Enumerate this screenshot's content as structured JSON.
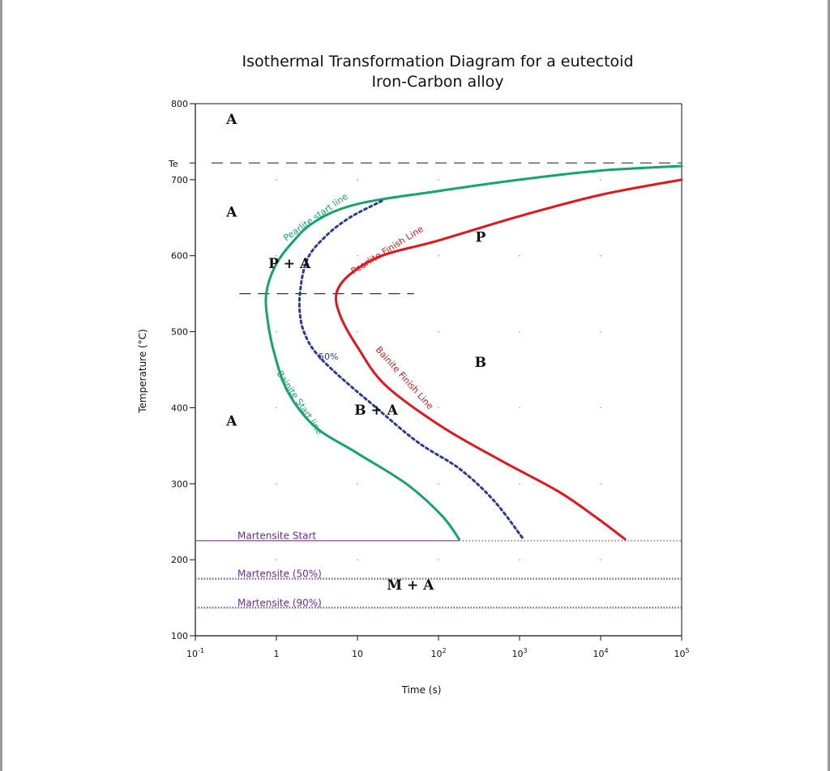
{
  "chart_data": {
    "type": "line",
    "title_line1": "Isothermal Transformation Diagram for a eutectoid",
    "title_line2": "Iron-Carbon alloy",
    "xlabel": "Time (s)",
    "ylabel": "Temperature (°C)",
    "x_scale": "log",
    "xlim": [
      0.1,
      100000
    ],
    "ylim": [
      100,
      800
    ],
    "x_ticks": [
      {
        "value": 0.1,
        "base": "10",
        "exp": "-1"
      },
      {
        "value": 1,
        "base": "1",
        "exp": ""
      },
      {
        "value": 10,
        "base": "10",
        "exp": ""
      },
      {
        "value": 100,
        "base": "10",
        "exp": "2"
      },
      {
        "value": 1000,
        "base": "10",
        "exp": "3"
      },
      {
        "value": 10000,
        "base": "10",
        "exp": "4"
      },
      {
        "value": 100000,
        "base": "10",
        "exp": "5"
      }
    ],
    "y_ticks": [
      800,
      700,
      600,
      500,
      400,
      300,
      200,
      100
    ],
    "te_label": "Te",
    "te_value": 722,
    "te_color": "#e8141c",
    "nose_temp": 550,
    "nose_line_end": 50,
    "series": [
      {
        "key": "pearlite_start",
        "color": "#13a56b",
        "dash": false,
        "points": [
          [
            100000,
            718
          ],
          [
            10000,
            712
          ],
          [
            1000,
            700
          ],
          [
            100,
            685
          ],
          [
            10,
            668
          ],
          [
            3,
            645
          ],
          [
            1.5,
            615
          ],
          [
            0.95,
            585
          ],
          [
            0.75,
            550
          ],
          [
            0.78,
            515
          ],
          [
            0.95,
            470
          ],
          [
            1.4,
            420
          ],
          [
            3,
            375
          ],
          [
            10,
            340
          ],
          [
            40,
            300
          ],
          [
            110,
            258
          ],
          [
            180,
            227
          ]
        ]
      },
      {
        "key": "fifty_percent",
        "color": "#2b3a9b",
        "dash": true,
        "points": [
          [
            20,
            672
          ],
          [
            8,
            650
          ],
          [
            4,
            625
          ],
          [
            2.4,
            595
          ],
          [
            1.95,
            550
          ],
          [
            2,
            515
          ],
          [
            2.4,
            490
          ],
          [
            3.2,
            470
          ],
          [
            5.5,
            445
          ],
          [
            15,
            405
          ],
          [
            55,
            355
          ],
          [
            180,
            320
          ],
          [
            480,
            278
          ],
          [
            1100,
            228
          ]
        ]
      },
      {
        "key": "pearlite_finish",
        "color": "#e8141c",
        "dash": false,
        "points": [
          [
            100000,
            700
          ],
          [
            10000,
            680
          ],
          [
            1000,
            652
          ],
          [
            100,
            620
          ],
          [
            20,
            600
          ],
          [
            8,
            575
          ],
          [
            5.5,
            550
          ],
          [
            6.2,
            520
          ],
          [
            10,
            480
          ],
          [
            22,
            430
          ],
          [
            110,
            375
          ],
          [
            600,
            330
          ],
          [
            3000,
            290
          ],
          [
            9000,
            255
          ],
          [
            20000,
            227
          ]
        ]
      }
    ],
    "curve_labels": {
      "pearlite_start": "Pearlite start line",
      "pearlite_finish": "Pearlite Finish Line",
      "fifty_percent": "50%",
      "bainite_start": "Bainite Start line",
      "bainite_finish": "Bainite Finish Line"
    },
    "regions": [
      {
        "text": "A",
        "x": 0.28,
        "y": 780
      },
      {
        "text": "A",
        "x": 0.28,
        "y": 658
      },
      {
        "text": "A",
        "x": 0.28,
        "y": 383
      },
      {
        "text": "P + A",
        "x": 1.45,
        "y": 590
      },
      {
        "text": "B + A",
        "x": 17,
        "y": 397
      },
      {
        "text": "P",
        "x": 330,
        "y": 625
      },
      {
        "text": "B",
        "x": 330,
        "y": 460
      },
      {
        "text": "M + A",
        "x": 45,
        "y": 167
      }
    ],
    "martensite": [
      {
        "label": "Martensite Start",
        "temp": 225,
        "solid_end": 180
      },
      {
        "label": "Martensite (50%)",
        "temp": 175,
        "solid_end": null
      },
      {
        "label": "Martensite (90%)",
        "temp": 137,
        "solid_end": null
      }
    ],
    "martensite_color": "#9b59c6",
    "grid_dots": true
  }
}
